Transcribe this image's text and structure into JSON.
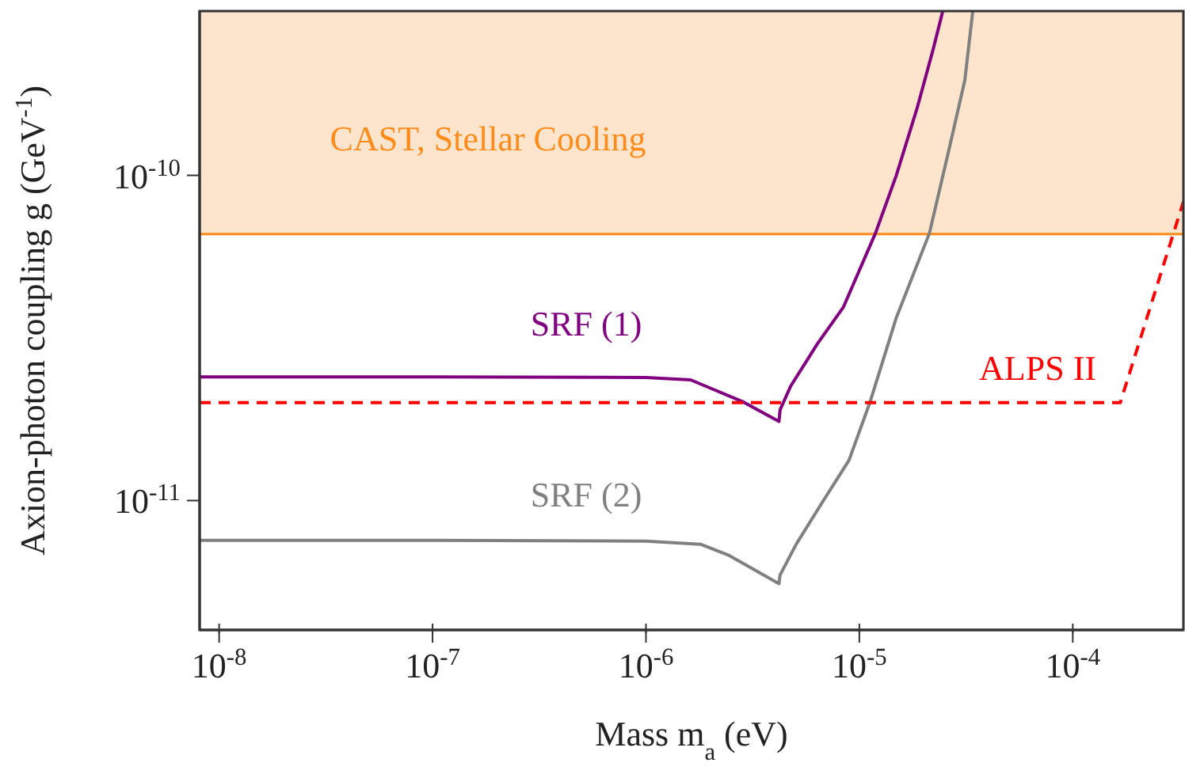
{
  "chart_data": {
    "type": "line",
    "xlabel": "Mass m$_{a}$ (eV)",
    "ylabel": "Axion-photon coupling g (GeV$^{-1}$)",
    "xlim": [
      8.1e-09,
      0.00033
    ],
    "ylim": [
      4e-12,
      3.2e-10
    ],
    "xticks": [
      {
        "value": 1e-08,
        "label": "10$^{-8}$"
      },
      {
        "value": 1e-07,
        "label": "10$^{-7}$"
      },
      {
        "value": 1e-06,
        "label": "10$^{-6}$"
      },
      {
        "value": 1e-05,
        "label": "10$^{-5}$"
      },
      {
        "value": 0.0001,
        "label": "10$^{-4}$"
      }
    ],
    "yticks": [
      {
        "value": 1e-11,
        "label": "10$^{-11}$"
      },
      {
        "value": 1e-10,
        "label": "10$^{-10}$"
      }
    ],
    "log": "xy",
    "marker": "none",
    "bands": [
      {
        "axis": "y",
        "from": 6.6e-11,
        "to": 3.2e-10,
        "label": "CAST, Stellar Cooling",
        "color": "#fde5cd"
      }
    ],
    "ref_lines": [
      {
        "axis": "y",
        "value": 6.6e-11,
        "color": "#ff8c1a"
      }
    ],
    "series": [
      {
        "name": "SRF (1)",
        "color": "#800080",
        "x": [
          8.1e-09,
          1e-07,
          1e-06,
          1.62e-06,
          2.86e-06,
          4.2e-06,
          4.25e-06,
          4.77e-06,
          6.35e-06,
          8.43e-06,
          1.19e-05,
          1.49e-05,
          1.87e-05,
          2.22e-05,
          2.46e-05
        ],
        "values": [
          2.4e-11,
          2.4e-11,
          2.39e-11,
          2.35e-11,
          2.01e-11,
          1.75e-11,
          1.9e-11,
          2.25e-11,
          3.03e-11,
          3.94e-11,
          6.64e-11,
          1e-10,
          1.62e-10,
          2.45e-10,
          3.2e-10
        ]
      },
      {
        "name": "SRF (2)",
        "color": "#808080",
        "x": [
          8.1e-09,
          1e-07,
          1e-06,
          1.8e-06,
          2.42e-06,
          4.2e-06,
          4.25e-06,
          5.06e-06,
          6.72e-06,
          8.94e-06,
          1.12e-05,
          1.49e-05,
          2.13e-05,
          2.63e-05,
          3.12e-05,
          3.4e-05
        ],
        "values": [
          7.55e-12,
          7.55e-12,
          7.5e-12,
          7.34e-12,
          6.81e-12,
          5.55e-12,
          5.9e-12,
          7.34e-12,
          9.9e-12,
          1.33e-11,
          2e-11,
          3.65e-11,
          6.64e-11,
          1.2e-10,
          1.96e-10,
          3.2e-10
        ]
      },
      {
        "name": "ALPS II",
        "color": "#ff0000",
        "line_style": "dashed",
        "x": [
          8.1e-09,
          0.000167,
          0.00033
        ],
        "values": [
          2e-11,
          2e-11,
          8.3e-11
        ]
      }
    ]
  }
}
